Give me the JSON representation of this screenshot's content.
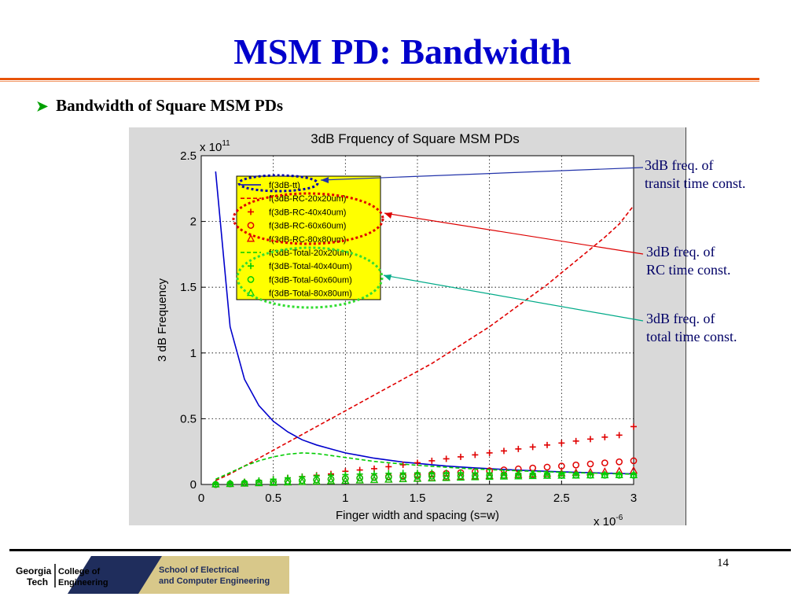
{
  "slide": {
    "title": "MSM PD: Bandwidth",
    "bullet": "Bandwidth of Square MSM PDs",
    "page_number": "14"
  },
  "callouts": {
    "transit": [
      "3dB freq. of",
      "transit time const."
    ],
    "rc": [
      "3dB freq. of",
      "RC time const."
    ],
    "total": [
      "3dB freq. of",
      "total time const."
    ]
  },
  "logo": {
    "left_top": "Georgia",
    "left_bottom": "Tech",
    "mid_top": "College of",
    "mid_bottom": "Engineering",
    "right_top": "School of Electrical",
    "right_bottom": "and Computer Engineering"
  },
  "colors": {
    "title": "#0000cc",
    "accent_rule": "#e8540a",
    "transit": "#0000cc",
    "rc": "#e00000",
    "total": "#00cc00",
    "legend_bg": "#ffff00",
    "callout_arrow_transit": "#2233aa",
    "callout_arrow_rc": "#dd0000",
    "callout_arrow_total": "#00aa88"
  },
  "chart_data": {
    "type": "line",
    "title": "3dB Frquency of Square MSM PDs",
    "xlabel": "Finger width and spacing (s=w)",
    "ylabel": "3 dB Frequency",
    "x_multiplier": "x 10",
    "x_multiplier_exp": "-6",
    "y_multiplier": "x 10",
    "y_multiplier_exp": "11",
    "xlim": [
      0,
      3
    ],
    "ylim": [
      0,
      2.5
    ],
    "xticks": [
      "0",
      "0.5",
      "1",
      "1.5",
      "2",
      "2.5",
      "3"
    ],
    "yticks": [
      "0",
      "0.5",
      "1",
      "1.5",
      "2",
      "2.5"
    ],
    "grid": true,
    "legend_position": "top-left",
    "x": [
      0.1,
      0.2,
      0.3,
      0.4,
      0.5,
      0.6,
      0.7,
      0.8,
      0.9,
      1.0,
      1.1,
      1.2,
      1.3,
      1.4,
      1.5,
      1.6,
      1.7,
      1.8,
      1.9,
      2.0,
      2.1,
      2.2,
      2.3,
      2.4,
      2.5,
      2.6,
      2.7,
      2.8,
      2.9,
      3.0
    ],
    "series": [
      {
        "name": "f(3dB-tt)",
        "style": "solid-line",
        "color": "#0000cc",
        "values": [
          2.38,
          1.2,
          0.8,
          0.6,
          0.48,
          0.4,
          0.34,
          0.3,
          0.27,
          0.24,
          0.22,
          0.2,
          0.185,
          0.17,
          0.16,
          0.15,
          0.14,
          0.133,
          0.126,
          0.12,
          0.114,
          0.109,
          0.104,
          0.1,
          0.096,
          0.092,
          0.089,
          0.086,
          0.083,
          0.08
        ]
      },
      {
        "name": "f(3dB-RC-20x20um)",
        "style": "dashed-line",
        "color": "#e00000",
        "values": [
          0.03,
          0.08,
          0.14,
          0.2,
          0.26,
          0.32,
          0.38,
          0.44,
          0.5,
          0.56,
          0.62,
          0.68,
          0.74,
          0.8,
          0.86,
          0.92,
          0.99,
          1.06,
          1.13,
          1.2,
          1.28,
          1.36,
          1.44,
          1.52,
          1.61,
          1.7,
          1.79,
          1.88,
          1.98,
          2.12
        ]
      },
      {
        "name": "f(3dB-RC-40x40um)",
        "style": "plus-marker",
        "color": "#e00000",
        "values": [
          0.0,
          0.01,
          0.02,
          0.03,
          0.04,
          0.05,
          0.06,
          0.07,
          0.08,
          0.1,
          0.11,
          0.12,
          0.135,
          0.15,
          0.165,
          0.18,
          0.195,
          0.21,
          0.225,
          0.24,
          0.255,
          0.27,
          0.285,
          0.3,
          0.315,
          0.33,
          0.345,
          0.36,
          0.375,
          0.44
        ]
      },
      {
        "name": "f(3dB-RC-60x60um)",
        "style": "circle-marker",
        "color": "#e00000",
        "values": [
          0.0,
          0.005,
          0.01,
          0.015,
          0.02,
          0.025,
          0.03,
          0.035,
          0.04,
          0.045,
          0.05,
          0.055,
          0.06,
          0.066,
          0.072,
          0.078,
          0.084,
          0.09,
          0.097,
          0.104,
          0.111,
          0.118,
          0.125,
          0.132,
          0.14,
          0.148,
          0.156,
          0.164,
          0.172,
          0.18
        ]
      },
      {
        "name": "f(3dB-RC-80x80um)",
        "style": "triangle-marker",
        "color": "#e00000",
        "values": [
          0.0,
          0.003,
          0.006,
          0.009,
          0.012,
          0.015,
          0.018,
          0.021,
          0.024,
          0.027,
          0.03,
          0.033,
          0.036,
          0.04,
          0.044,
          0.048,
          0.052,
          0.056,
          0.06,
          0.064,
          0.068,
          0.072,
          0.076,
          0.08,
          0.084,
          0.088,
          0.092,
          0.096,
          0.1,
          0.104
        ]
      },
      {
        "name": "f(3dB-Total-20x20um)",
        "style": "dashed-line",
        "color": "#00cc00",
        "values": [
          0.04,
          0.09,
          0.14,
          0.18,
          0.21,
          0.23,
          0.24,
          0.235,
          0.22,
          0.205,
          0.19,
          0.175,
          0.165,
          0.155,
          0.146,
          0.138,
          0.131,
          0.124,
          0.118,
          0.113,
          0.108,
          0.104,
          0.1,
          0.096,
          0.093,
          0.09,
          0.087,
          0.084,
          0.081,
          0.078
        ]
      },
      {
        "name": "f(3dB-Total-40x40um)",
        "style": "plus-marker",
        "color": "#00cc00",
        "values": [
          0.0,
          0.01,
          0.02,
          0.03,
          0.04,
          0.05,
          0.058,
          0.065,
          0.07,
          0.075,
          0.079,
          0.082,
          0.085,
          0.087,
          0.088,
          0.089,
          0.089,
          0.089,
          0.088,
          0.087,
          0.086,
          0.085,
          0.084,
          0.083,
          0.082,
          0.081,
          0.08,
          0.079,
          0.078,
          0.077
        ]
      },
      {
        "name": "f(3dB-Total-60x60um)",
        "style": "circle-marker",
        "color": "#00cc00",
        "values": [
          0.0,
          0.005,
          0.01,
          0.015,
          0.02,
          0.025,
          0.03,
          0.035,
          0.04,
          0.044,
          0.048,
          0.052,
          0.055,
          0.058,
          0.061,
          0.063,
          0.065,
          0.066,
          0.067,
          0.068,
          0.069,
          0.07,
          0.07,
          0.07,
          0.07,
          0.07,
          0.07,
          0.07,
          0.07,
          0.07
        ]
      },
      {
        "name": "f(3dB-Total-80x80um)",
        "style": "triangle-marker",
        "color": "#00cc00",
        "values": [
          0.0,
          0.003,
          0.006,
          0.009,
          0.012,
          0.015,
          0.018,
          0.021,
          0.024,
          0.027,
          0.03,
          0.033,
          0.036,
          0.039,
          0.042,
          0.045,
          0.048,
          0.051,
          0.054,
          0.057,
          0.059,
          0.061,
          0.063,
          0.065,
          0.066,
          0.067,
          0.068,
          0.069,
          0.07,
          0.07
        ]
      }
    ]
  }
}
